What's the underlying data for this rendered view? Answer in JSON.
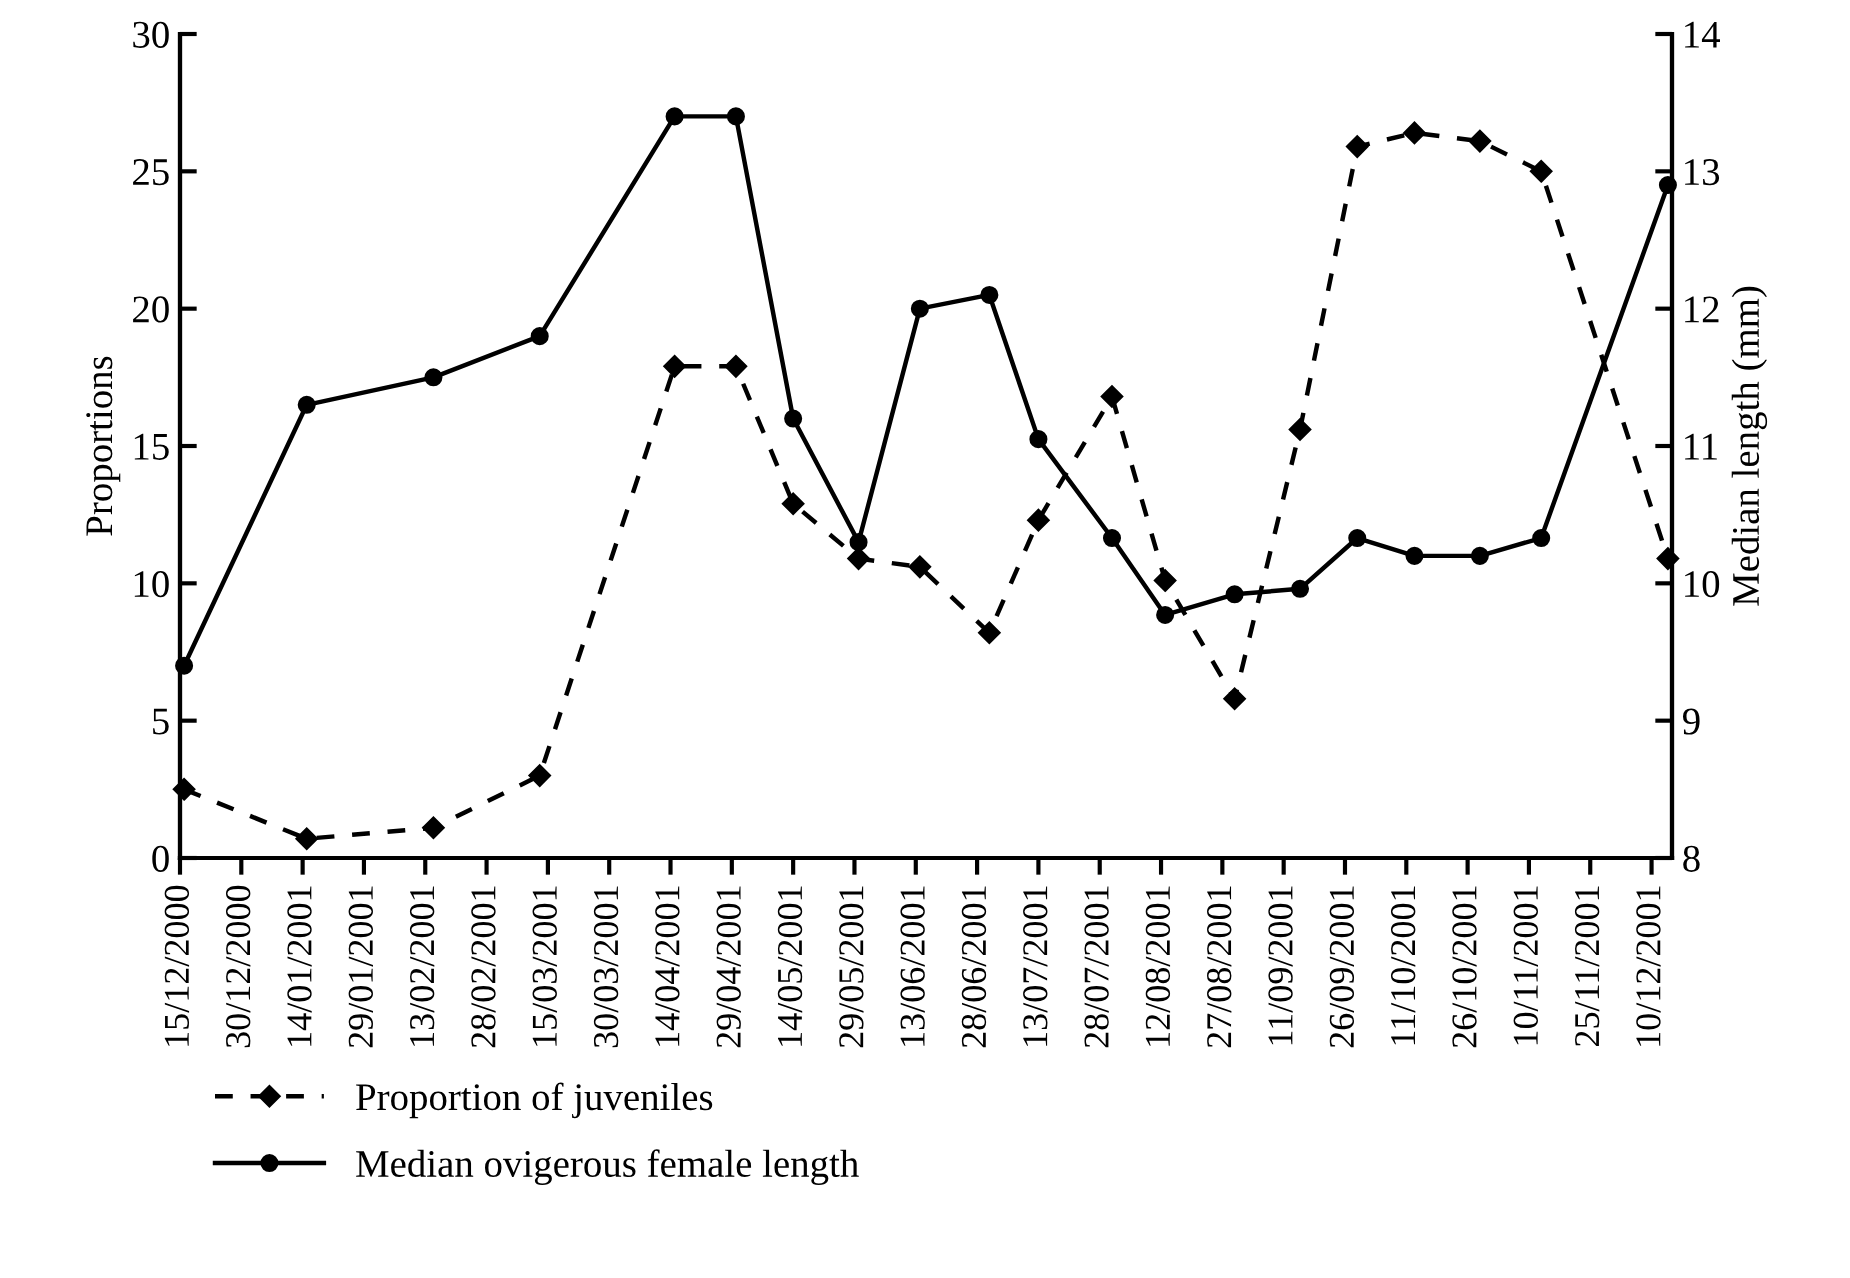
{
  "chart_data": {
    "type": "line",
    "ylabel": "Proportions",
    "y2label": "Median length (mm)",
    "x": [
      "2000-12-16",
      "2001-01-15",
      "2001-02-15",
      "2001-03-13",
      "2001-04-15",
      "2001-04-30",
      "2001-05-14",
      "2001-05-30",
      "2001-06-14",
      "2001-07-01",
      "2001-07-13",
      "2001-07-31",
      "2001-08-13",
      "2001-08-30",
      "2001-09-15",
      "2001-09-29",
      "2001-10-13",
      "2001-10-29",
      "2001-11-13",
      "2001-12-14"
    ],
    "series": [
      {
        "name": "Proportion of juveniles",
        "color": "#000000",
        "marker": "diamond",
        "line_style": "dashed",
        "axis": "y",
        "values": [
          2.5,
          0.7,
          1.1,
          3.0,
          17.9,
          17.9,
          12.9,
          10.9,
          10.6,
          8.2,
          12.3,
          16.8,
          10.1,
          5.8,
          15.6,
          25.9,
          26.4,
          26.1,
          25.0,
          10.9
        ]
      },
      {
        "name": "Median ovigerous female length",
        "color": "#000000",
        "marker": "circle",
        "line_style": "solid",
        "axis": "y2",
        "values": [
          9.4,
          11.3,
          11.5,
          11.8,
          13.4,
          13.4,
          11.2,
          10.3,
          12.0,
          12.1,
          11.05,
          10.33,
          9.77,
          9.92,
          9.96,
          10.33,
          10.2,
          10.2,
          10.33,
          12.9
        ]
      }
    ],
    "xlim": [
      "2000-12-15",
      "2001-12-15"
    ],
    "xticks": [
      {
        "value": "2000-12-15",
        "label": "15/12/2000"
      },
      {
        "value": "2000-12-30",
        "label": "30/12/2000"
      },
      {
        "value": "2001-01-14",
        "label": "14/01/2001"
      },
      {
        "value": "2001-01-29",
        "label": "29/01/2001"
      },
      {
        "value": "2001-02-13",
        "label": "13/02/2001"
      },
      {
        "value": "2001-02-28",
        "label": "28/02/2001"
      },
      {
        "value": "2001-03-15",
        "label": "15/03/2001"
      },
      {
        "value": "2001-03-30",
        "label": "30/03/2001"
      },
      {
        "value": "2001-04-14",
        "label": "14/04/2001"
      },
      {
        "value": "2001-04-29",
        "label": "29/04/2001"
      },
      {
        "value": "2001-05-14",
        "label": "14/05/2001"
      },
      {
        "value": "2001-05-29",
        "label": "29/05/2001"
      },
      {
        "value": "2001-06-13",
        "label": "13/06/2001"
      },
      {
        "value": "2001-06-28",
        "label": "28/06/2001"
      },
      {
        "value": "2001-07-13",
        "label": "13/07/2001"
      },
      {
        "value": "2001-07-28",
        "label": "28/07/2001"
      },
      {
        "value": "2001-08-12",
        "label": "12/08/2001"
      },
      {
        "value": "2001-08-27",
        "label": "27/08/2001"
      },
      {
        "value": "2001-09-11",
        "label": "11/09/2001"
      },
      {
        "value": "2001-09-26",
        "label": "26/09/2001"
      },
      {
        "value": "2001-10-11",
        "label": "11/10/2001"
      },
      {
        "value": "2001-10-26",
        "label": "26/10/2001"
      },
      {
        "value": "2001-11-10",
        "label": "10/11/2001"
      },
      {
        "value": "2001-11-25",
        "label": "25/11/2001"
      },
      {
        "value": "2001-12-10",
        "label": "10/12/2001"
      }
    ],
    "ylim": [
      0,
      30
    ],
    "yticks": [
      0,
      5,
      10,
      15,
      20,
      25,
      30
    ],
    "y2lim": [
      8,
      14
    ],
    "y2ticks": [
      8,
      9,
      10,
      11,
      12,
      13,
      14
    ],
    "grid": false,
    "legend": "bottom left"
  }
}
